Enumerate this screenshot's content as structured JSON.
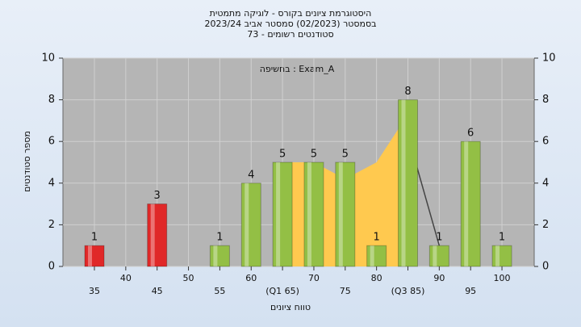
{
  "chart_data": {
    "type": "bar",
    "title": "היסטוגרמת ציונים בקורס - לוגיקה מתמטית",
    "subtitle": [
      "בסמסטר  (02/2023)  סמסטר אביב 2023/24",
      "סטודנטים רשומים - 73"
    ],
    "annotation": "בחשיפה : Exam_A",
    "x_label": "טווח ציונים",
    "y_label": "מספר סטודנטים",
    "categories": [
      "35",
      "40",
      "45",
      "50",
      "55",
      "60",
      "(Q1 65)",
      "70",
      "75",
      "80",
      "(Q3 85)",
      "90",
      "95",
      "100"
    ],
    "values": [
      1,
      0,
      3,
      0,
      1,
      4,
      5,
      5,
      5,
      1,
      8,
      1,
      6,
      1
    ],
    "colors": [
      "#e02828",
      "#e02828",
      "#e02828",
      "#e02828",
      "#93bf45",
      "#93bf45",
      "#93bf45",
      "#93bf45",
      "#93bf45",
      "#93bf45",
      "#93bf45",
      "#93bf45",
      "#93bf45",
      "#93bf45"
    ],
    "series": [
      {
        "type": "area",
        "color": "#ffc94f",
        "values": [
          null,
          null,
          null,
          null,
          null,
          null,
          5,
          5,
          4.2,
          5,
          7.3,
          null,
          null,
          null
        ]
      },
      {
        "type": "line",
        "color": "#444444",
        "values": [
          null,
          null,
          null,
          null,
          null,
          null,
          null,
          null,
          null,
          null,
          6.3,
          1,
          null,
          null
        ]
      }
    ],
    "ylim": [
      0,
      10
    ],
    "yticks": [
      0,
      2,
      4,
      6,
      8,
      10
    ],
    "y2lim": [
      0,
      10
    ],
    "y2ticks": [
      0,
      2,
      4,
      6,
      8,
      10
    ],
    "grid": true
  }
}
